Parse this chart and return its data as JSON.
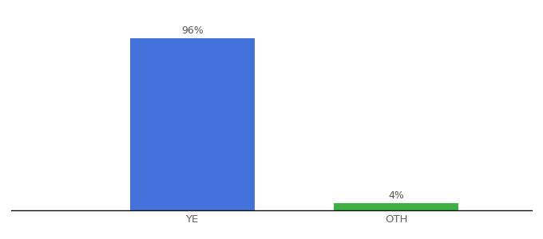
{
  "categories": [
    "YE",
    "OTH"
  ],
  "values": [
    96,
    4
  ],
  "bar_colors": [
    "#4472db",
    "#3cb040"
  ],
  "label_texts": [
    "96%",
    "4%"
  ],
  "ylim": [
    0,
    108
  ],
  "background_color": "#ffffff",
  "bar_width": 0.55,
  "label_fontsize": 9,
  "tick_fontsize": 9.5,
  "tick_color": "#666666",
  "axis_line_color": "#111111",
  "figsize": [
    6.8,
    3.0
  ],
  "dpi": 100,
  "xlim": [
    -0.5,
    1.8
  ],
  "x_positions": [
    0.3,
    1.2
  ]
}
